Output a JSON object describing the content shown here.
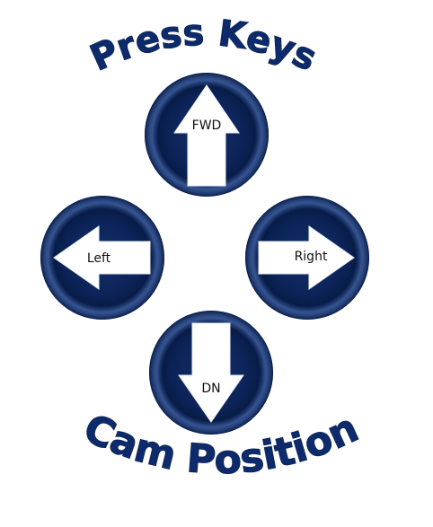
{
  "title_top": "Press Keys",
  "title_bottom": "Cam Position",
  "keys": {
    "up": {
      "label": "FWD"
    },
    "left": {
      "label": "Left"
    },
    "right": {
      "label": "Right"
    },
    "down": {
      "label": "DN"
    }
  },
  "colors": {
    "circle_center": "#0b2357",
    "circle_edge": "#001030",
    "circle_highlight": "#4a73c8",
    "arrow": "#ffffff",
    "title": "#0d2b6b"
  }
}
